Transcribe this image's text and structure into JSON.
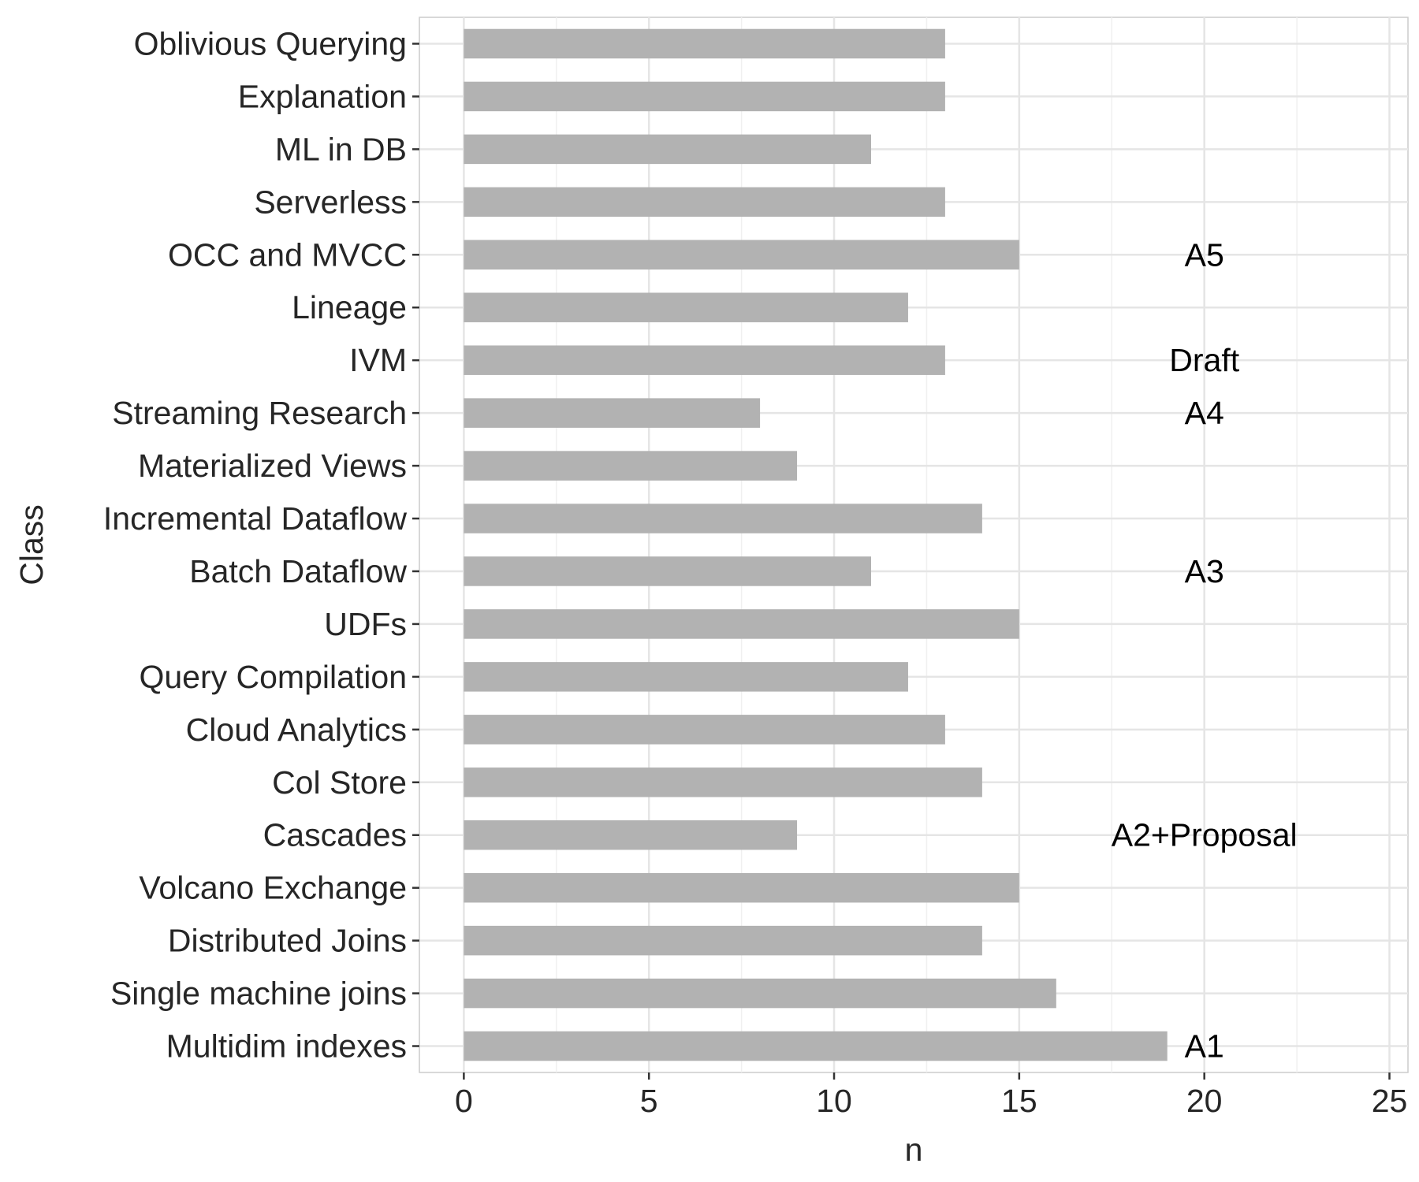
{
  "chart_data": {
    "type": "bar",
    "orientation": "horizontal",
    "xlabel": "n",
    "ylabel": "Class",
    "xlim": [
      -1.2,
      25.5
    ],
    "x_ticks": [
      0,
      5,
      10,
      15,
      20,
      25
    ],
    "grid": true,
    "bar_color": "#b2b2b2",
    "categories": [
      "Oblivious Querying",
      "Explanation",
      "ML in DB",
      "Serverless",
      "OCC and MVCC",
      "Lineage",
      "IVM",
      "Streaming Research",
      "Materialized Views",
      "Incremental Dataflow",
      "Batch Dataflow",
      "UDFs",
      "Query Compilation",
      "Cloud Analytics",
      "Col Store",
      "Cascades",
      "Volcano Exchange",
      "Distributed Joins",
      "Single machine joins",
      "Multidim indexes"
    ],
    "values": [
      13,
      13,
      11,
      13,
      15,
      12,
      13,
      8,
      9,
      14,
      11,
      15,
      12,
      13,
      14,
      9,
      15,
      14,
      16,
      19
    ],
    "annotations": [
      {
        "category": "OCC and MVCC",
        "x": 20,
        "text": "A5"
      },
      {
        "category": "IVM",
        "x": 20,
        "text": "Draft"
      },
      {
        "category": "Streaming Research",
        "x": 20,
        "text": "A4"
      },
      {
        "category": "Batch Dataflow",
        "x": 20,
        "text": "A3"
      },
      {
        "category": "Cascades",
        "x": 20,
        "text": "A2+Proposal"
      },
      {
        "category": "Multidim indexes",
        "x": 20,
        "text": "A1"
      }
    ]
  }
}
